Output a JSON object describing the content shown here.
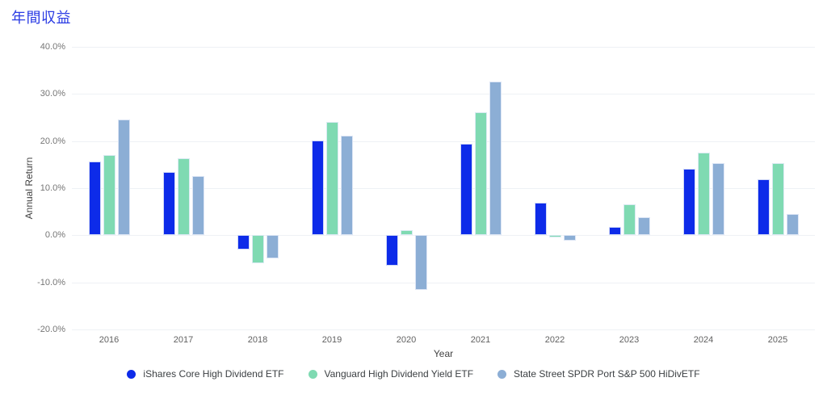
{
  "title": "年間収益",
  "chart_data": {
    "type": "bar",
    "title": "年間収益",
    "xlabel": "Year",
    "ylabel": "Annual Return",
    "ylim": [
      -20,
      40
    ],
    "y_ticks": [
      40,
      30,
      20,
      10,
      0,
      -10,
      -20
    ],
    "y_tick_suffix": "%",
    "grid": true,
    "legend_position": "bottom",
    "categories": [
      "2016",
      "2017",
      "2018",
      "2019",
      "2020",
      "2021",
      "2022",
      "2023",
      "2024",
      "2025"
    ],
    "series": [
      {
        "name": "iShares Core High Dividend ETF",
        "color": "#0d2be9",
        "values": [
          15.7,
          13.4,
          -3.0,
          20.1,
          -6.4,
          19.4,
          7.0,
          1.8,
          14.2,
          11.9
        ]
      },
      {
        "name": "Vanguard High Dividend Yield ETF",
        "color": "#7fdab2",
        "values": [
          17.0,
          16.4,
          -6.0,
          24.0,
          1.1,
          26.1,
          -0.5,
          6.5,
          17.6,
          15.3
        ]
      },
      {
        "name": "State Street SPDR Port S&P 500 HiDivETF",
        "color": "#8caed5",
        "values": [
          24.5,
          12.6,
          -5.0,
          21.2,
          -11.7,
          32.6,
          -1.2,
          3.9,
          15.3,
          4.6
        ]
      }
    ]
  },
  "colors": {
    "title": "#2b3ce4",
    "gridline": "#eef1f5",
    "y_tick_text": "#757575",
    "x_tick_text": "#616161",
    "axis_title_text": "#424242",
    "legend_text": "#3c4043",
    "background": "#ffffff"
  }
}
